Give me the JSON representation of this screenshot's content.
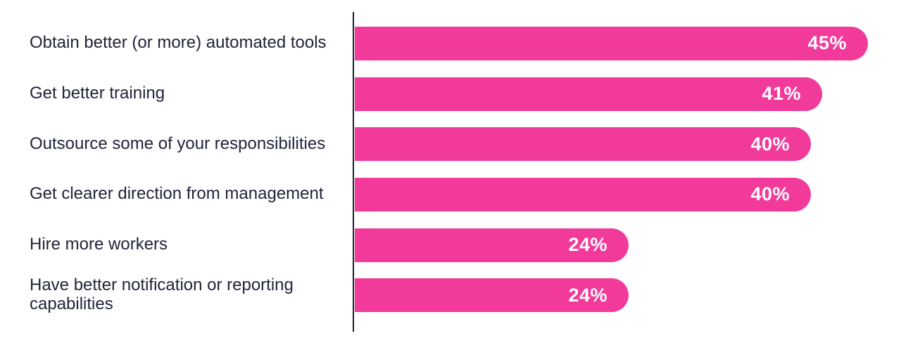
{
  "chart_data": {
    "type": "bar",
    "orientation": "horizontal",
    "title": "",
    "xlabel": "",
    "ylabel": "",
    "grid": false,
    "legend": false,
    "xlim": [
      0,
      47
    ],
    "categories": [
      "Obtain better (or more) automated tools",
      "Get better training",
      "Outsource some of your responsibilities",
      "Get clearer direction from management",
      "Hire more workers",
      "Have better notification or reporting capabilities"
    ],
    "values": [
      45,
      41,
      40,
      40,
      24,
      24
    ],
    "value_labels": [
      "45%",
      "41%",
      "40%",
      "40%",
      "24%",
      "24%"
    ],
    "bar_color": "#F23A9B",
    "label_color": "#21243A",
    "value_label_color": "#FFFFFF",
    "axis_line_color": "#1B1D2E",
    "background_color": "#FFFFFF"
  }
}
